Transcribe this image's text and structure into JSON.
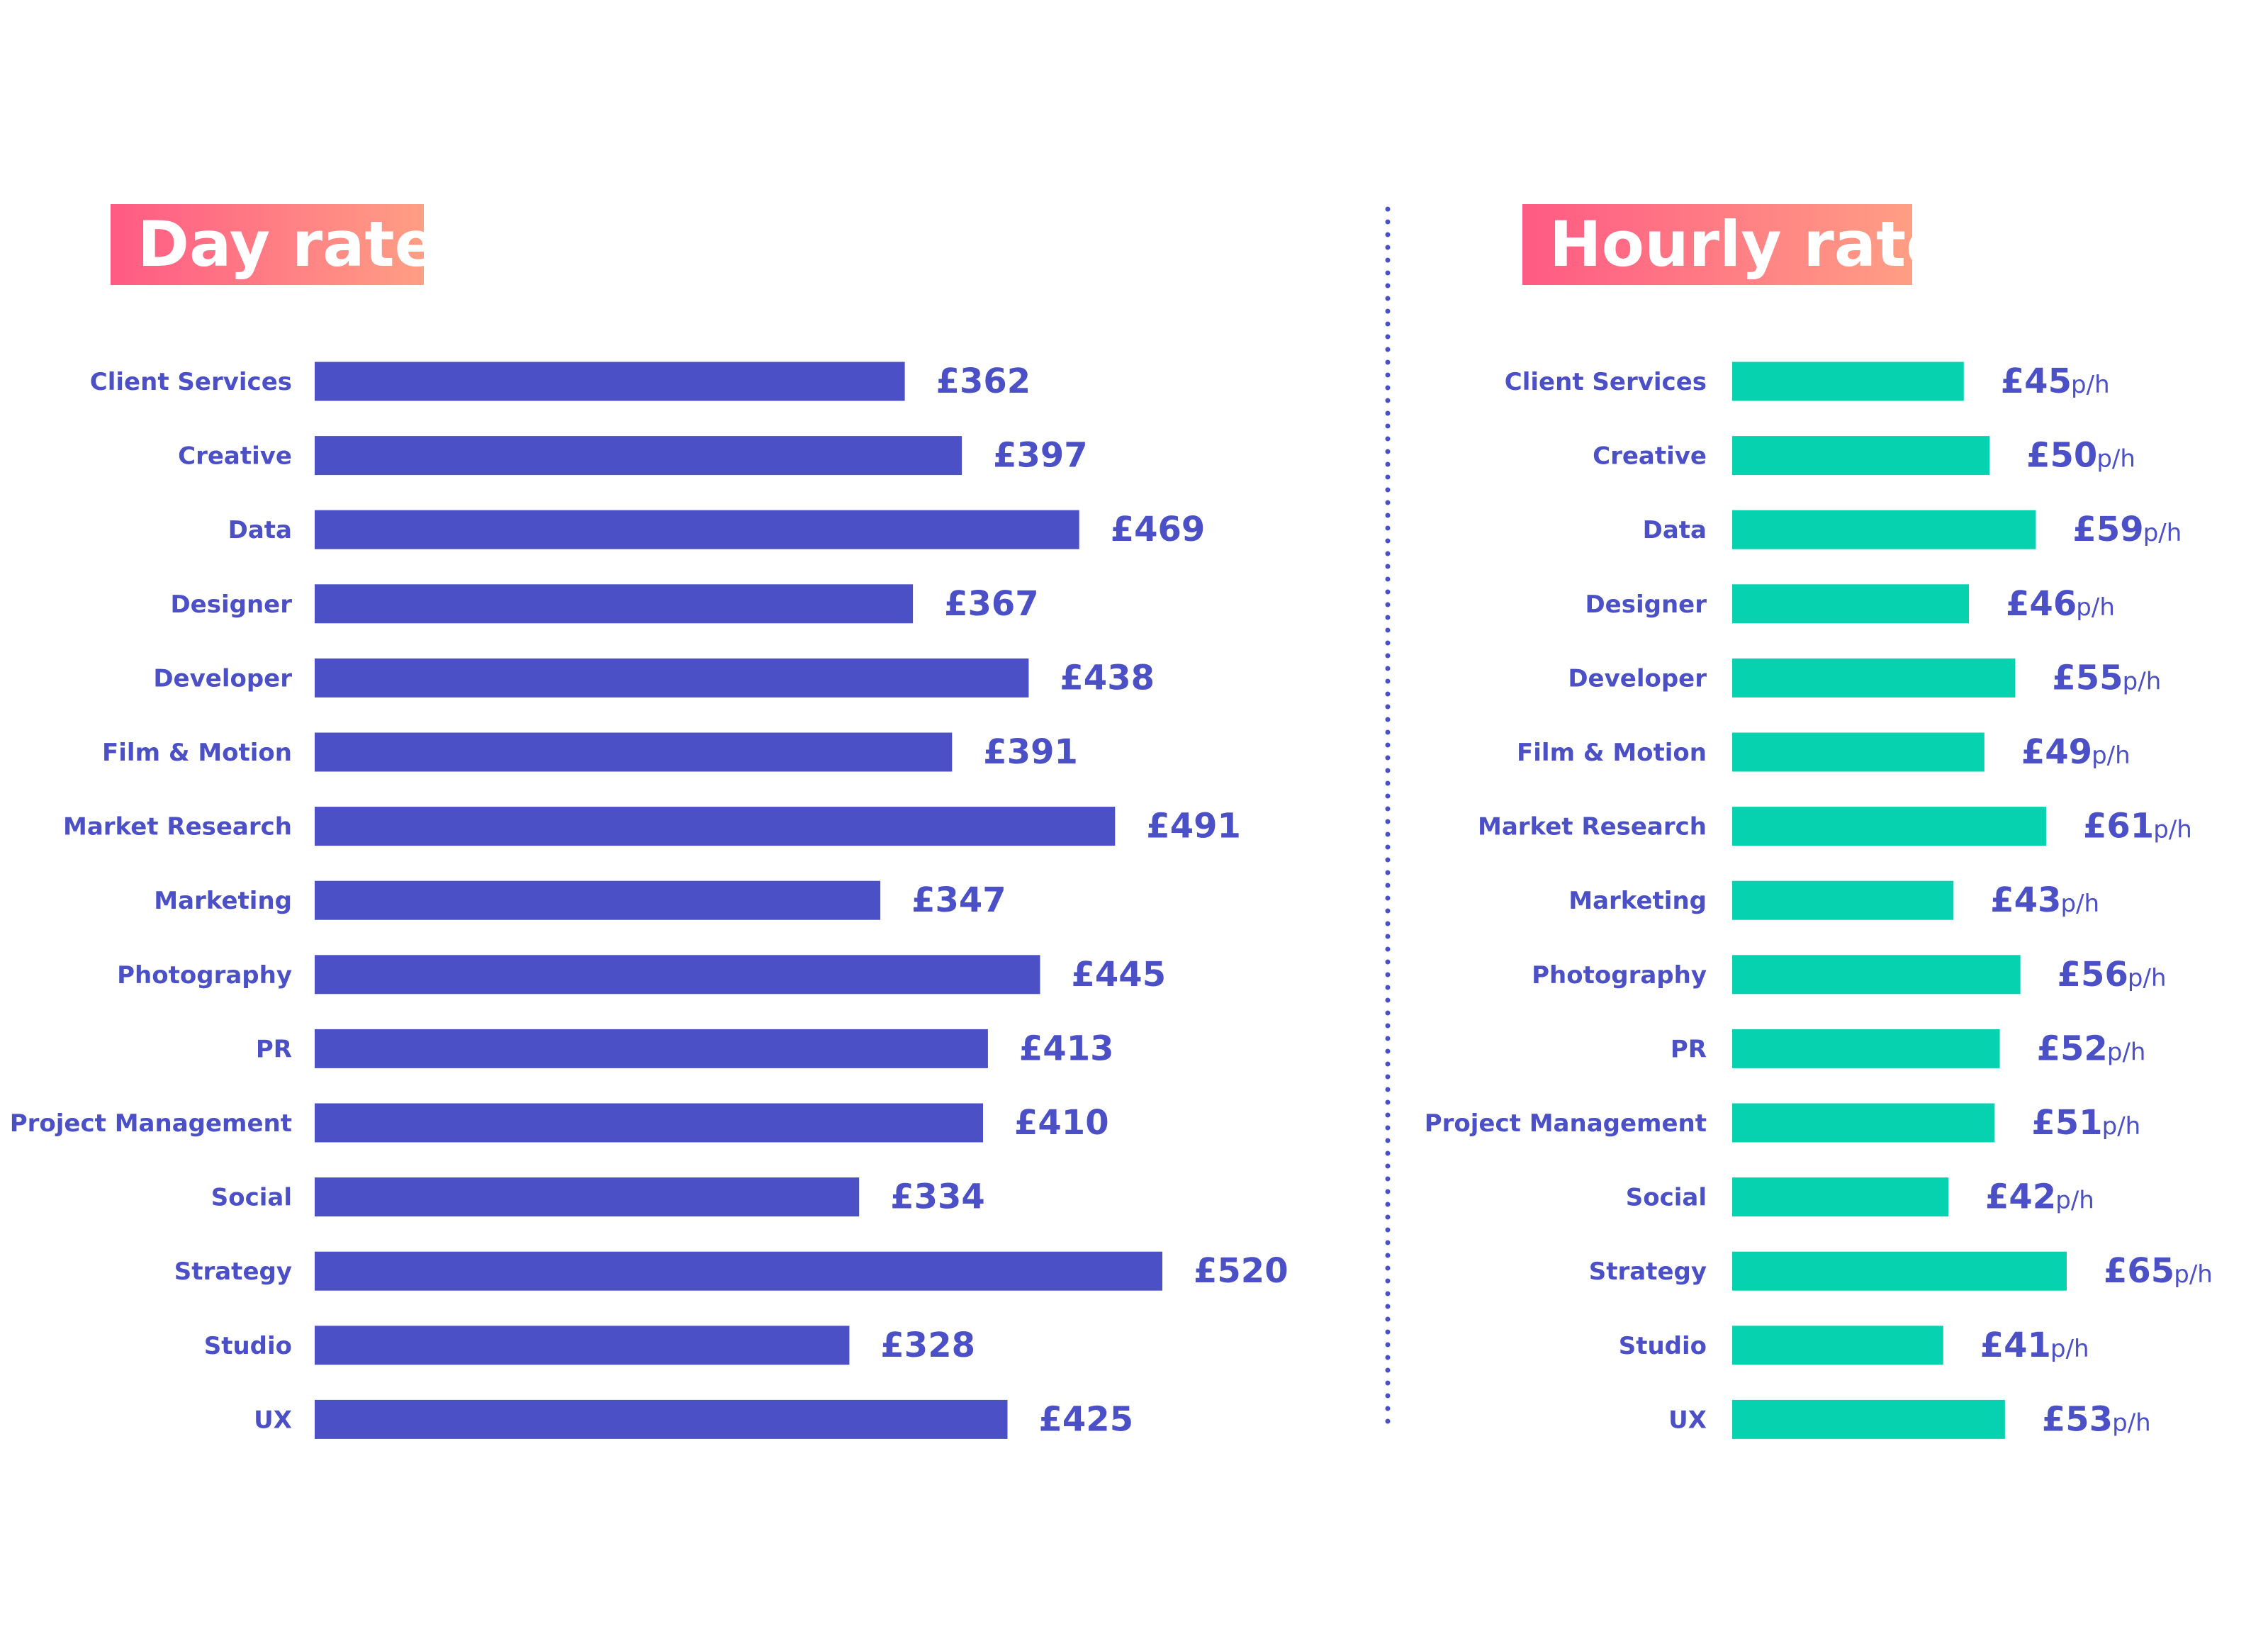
{
  "colors": {
    "day_bar": "#4b50c6",
    "hourly_bar": "#06d2b0",
    "text": "#4b50c6",
    "title_grad_start": "#ff5a84",
    "title_grad_end": "#ff9e84",
    "title_text": "#ffffff",
    "divider": "#4b50c6"
  },
  "chart_data": [
    {
      "type": "bar",
      "orientation": "horizontal",
      "title": "Day rate",
      "categories": [
        "Client Services",
        "Creative",
        "Data",
        "Designer",
        "Developer",
        "Film & Motion",
        "Market Research",
        "Marketing",
        "Photography",
        "PR",
        "Project Management",
        "Social",
        "Strategy",
        "Studio",
        "UX"
      ],
      "values": [
        362,
        397,
        469,
        367,
        438,
        391,
        491,
        347,
        445,
        413,
        410,
        334,
        520,
        328,
        425
      ],
      "value_labels": [
        "£362",
        "£397",
        "£469",
        "£367",
        "£438",
        "£391",
        "£491",
        "£347",
        "£445",
        "£413",
        "£410",
        "£334",
        "£520",
        "£328",
        "£425"
      ],
      "unit_suffix": "",
      "xlim": [
        0,
        520
      ]
    },
    {
      "type": "bar",
      "orientation": "horizontal",
      "title": "Hourly rate",
      "categories": [
        "Client Services",
        "Creative",
        "Data",
        "Designer",
        "Developer",
        "Film & Motion",
        "Market Research",
        "Marketing",
        "Photography",
        "PR",
        "Project Management",
        "Social",
        "Strategy",
        "Studio",
        "UX"
      ],
      "values": [
        45,
        50,
        59,
        46,
        55,
        49,
        61,
        43,
        56,
        52,
        51,
        42,
        65,
        41,
        53
      ],
      "value_labels": [
        "£45",
        "£50",
        "£59",
        "£46",
        "£55",
        "£49",
        "£61",
        "£43",
        "£56",
        "£52",
        "£51",
        "£42",
        "£65",
        "£41",
        "£53"
      ],
      "unit_suffix": "p/h",
      "xlim": [
        0,
        65
      ]
    }
  ]
}
